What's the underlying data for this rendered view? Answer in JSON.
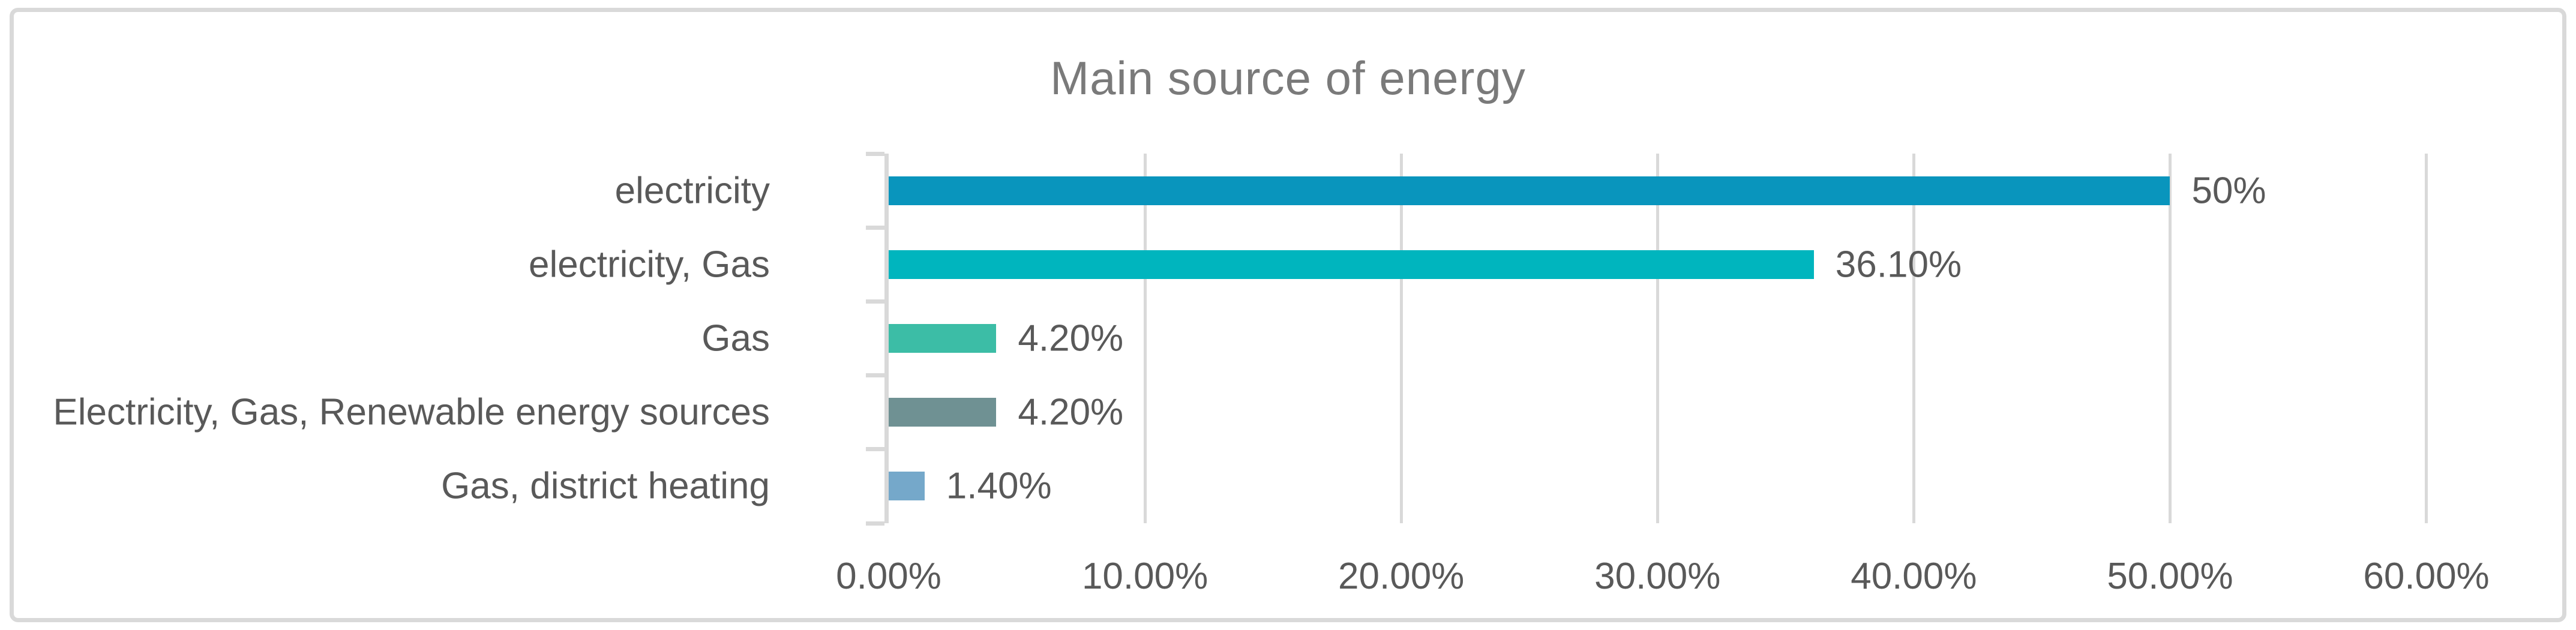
{
  "window": {
    "title": "Main source of energy"
  },
  "colors": {
    "frame_border": "#D9D9D9",
    "gridline": "#D9D9D9",
    "axis_line": "#D9D9D9",
    "title_text": "#7A7A7A",
    "axis_text": "#595959",
    "background": "#FFFFFF"
  },
  "chart_data": {
    "type": "bar",
    "orientation": "horizontal",
    "title": "Main source of energy",
    "categories": [
      "electricity",
      "electricity, Gas",
      "Gas",
      "Electricity, Gas, Renewable energy sources",
      "Gas, district heating"
    ],
    "values": [
      50,
      36.1,
      4.2,
      4.2,
      1.4
    ],
    "value_labels": [
      "50%",
      "36.10%",
      "4.20%",
      "4.20%",
      "1.40%"
    ],
    "bar_colors": [
      "#0995BD",
      "#00B5BE",
      "#3CBDA6",
      "#6F9193",
      "#75A8CA"
    ],
    "x_tick_labels": [
      "0.00%",
      "10.00%",
      "20.00%",
      "30.00%",
      "40.00%",
      "50.00%",
      "60.00%"
    ],
    "x_tick_values": [
      0,
      10,
      20,
      30,
      40,
      50,
      60
    ],
    "xlim": [
      0,
      60
    ],
    "axis_max_display": 62.75,
    "xlabel": "",
    "ylabel": "",
    "grid": true,
    "legend": false,
    "data_labels_shown": true
  }
}
